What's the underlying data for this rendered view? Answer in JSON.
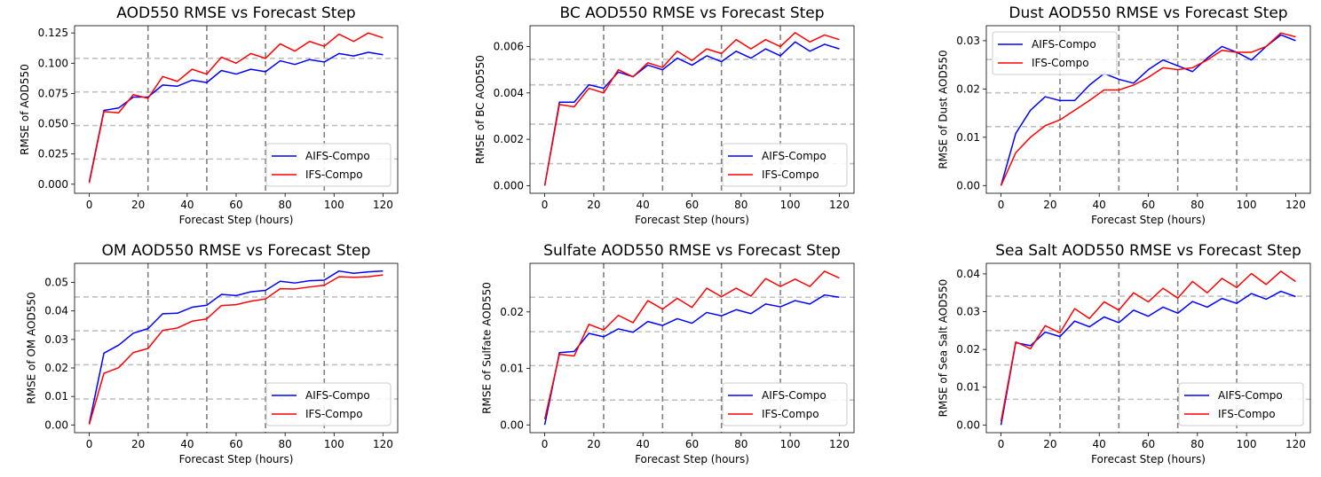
{
  "chart_data": [
    {
      "type": "line",
      "title": "AOD550 RMSE vs Forecast Step",
      "xlabel": "Forecast Step (hours)",
      "ylabel": "RMSE of AOD550",
      "xlim": [
        -6,
        126
      ],
      "ylim": [
        -0.0075,
        0.131
      ],
      "xticks": [
        "0",
        "20",
        "40",
        "60",
        "80",
        "100",
        "120"
      ],
      "yticks": [
        "0.000",
        "0.025",
        "0.050",
        "0.075",
        "0.100",
        "0.125"
      ],
      "legend": "lower-right",
      "grid": "dashed horizontal",
      "vlines": [
        24,
        48,
        72,
        96
      ],
      "hlines": [
        0.0208,
        0.0485,
        0.0763,
        0.104
      ],
      "x": [
        0,
        6,
        12,
        18,
        24,
        30,
        36,
        42,
        48,
        54,
        60,
        66,
        72,
        78,
        84,
        90,
        96,
        102,
        108,
        114,
        120
      ],
      "series": [
        {
          "name": "AIFS-Compo",
          "color": "#0000ff",
          "values": [
            0.002,
            0.061,
            0.063,
            0.072,
            0.072,
            0.082,
            0.081,
            0.086,
            0.084,
            0.094,
            0.091,
            0.095,
            0.093,
            0.102,
            0.099,
            0.103,
            0.101,
            0.108,
            0.106,
            0.109,
            0.107
          ]
        },
        {
          "name": "IFS-Compo",
          "color": "#ff0000",
          "values": [
            0.001,
            0.06,
            0.059,
            0.074,
            0.071,
            0.089,
            0.085,
            0.095,
            0.091,
            0.105,
            0.1,
            0.108,
            0.104,
            0.116,
            0.11,
            0.118,
            0.114,
            0.124,
            0.118,
            0.125,
            0.121
          ]
        }
      ]
    },
    {
      "type": "line",
      "title": "BC AOD550 RMSE vs Forecast Step",
      "xlabel": "Forecast Step (hours)",
      "ylabel": "RMSE of BC AOD550",
      "xlim": [
        -6,
        126
      ],
      "ylim": [
        -0.00033,
        0.0069
      ],
      "xticks": [
        "0",
        "20",
        "40",
        "60",
        "80",
        "100",
        "120"
      ],
      "yticks": [
        "0.000",
        "0.002",
        "0.004",
        "0.006"
      ],
      "legend": "lower-right",
      "grid": "dashed horizontal",
      "vlines": [
        24,
        48,
        72,
        96
      ],
      "hlines": [
        0.00095,
        0.00265,
        0.00435,
        0.00545
      ],
      "x": [
        0,
        6,
        12,
        18,
        24,
        30,
        36,
        42,
        48,
        54,
        60,
        66,
        72,
        78,
        84,
        90,
        96,
        102,
        108,
        114,
        120
      ],
      "series": [
        {
          "name": "AIFS-Compo",
          "color": "#0000ff",
          "values": [
            0.0,
            0.0036,
            0.0036,
            0.00435,
            0.0042,
            0.0049,
            0.0047,
            0.0052,
            0.005,
            0.0055,
            0.0052,
            0.0056,
            0.00535,
            0.0058,
            0.0055,
            0.0059,
            0.0056,
            0.0062,
            0.0058,
            0.0061,
            0.0059
          ]
        },
        {
          "name": "IFS-Compo",
          "color": "#ff0000",
          "values": [
            0.0,
            0.0035,
            0.0034,
            0.0042,
            0.004,
            0.005,
            0.0047,
            0.0053,
            0.0051,
            0.0058,
            0.0054,
            0.0059,
            0.0057,
            0.0063,
            0.0059,
            0.0063,
            0.006,
            0.0066,
            0.0062,
            0.0065,
            0.0063
          ]
        }
      ]
    },
    {
      "type": "line",
      "title": "Dust AOD550 RMSE vs Forecast Step",
      "xlabel": "Forecast Step (hours)",
      "ylabel": "RMSE of Dust AOD550",
      "xlim": [
        -6,
        126
      ],
      "ylim": [
        -0.0016,
        0.0331
      ],
      "xticks": [
        "0",
        "20",
        "40",
        "60",
        "80",
        "100",
        "120"
      ],
      "yticks": [
        "0.00",
        "0.01",
        "0.02",
        "0.03"
      ],
      "legend": "upper-left",
      "grid": "dashed horizontal",
      "vlines": [
        24,
        48,
        72,
        96
      ],
      "hlines": [
        0.0053,
        0.0122,
        0.0192,
        0.0261
      ],
      "x": [
        0,
        6,
        12,
        18,
        24,
        30,
        36,
        42,
        48,
        54,
        60,
        66,
        72,
        78,
        84,
        90,
        96,
        102,
        108,
        114,
        120
      ],
      "series": [
        {
          "name": "AIFS-Compo",
          "color": "#0000ff",
          "values": [
            0.0,
            0.0108,
            0.0156,
            0.0184,
            0.0176,
            0.0176,
            0.0208,
            0.0232,
            0.022,
            0.0212,
            0.024,
            0.026,
            0.0248,
            0.0236,
            0.0264,
            0.0288,
            0.0276,
            0.026,
            0.0288,
            0.0312,
            0.03
          ]
        },
        {
          "name": "IFS-Compo",
          "color": "#ff0000",
          "values": [
            0.0,
            0.0068,
            0.01,
            0.0124,
            0.0136,
            0.0156,
            0.0176,
            0.0198,
            0.0198,
            0.0208,
            0.0224,
            0.0244,
            0.024,
            0.0244,
            0.026,
            0.028,
            0.0276,
            0.0276,
            0.0288,
            0.0316,
            0.0308
          ]
        }
      ]
    },
    {
      "type": "line",
      "title": "OM AOD550 RMSE vs Forecast Step",
      "xlabel": "Forecast Step (hours)",
      "ylabel": "RMSE of OM AOD550",
      "xlim": [
        -6,
        126
      ],
      "ylim": [
        -0.0027,
        0.0567
      ],
      "xticks": [
        "0",
        "20",
        "40",
        "60",
        "80",
        "100",
        "120"
      ],
      "yticks": [
        "0.00",
        "0.01",
        "0.02",
        "0.03",
        "0.04",
        "0.05"
      ],
      "legend": "lower-right",
      "grid": "dashed horizontal",
      "vlines": [
        24,
        48,
        72,
        96
      ],
      "hlines": [
        0.0091,
        0.0211,
        0.033,
        0.0449
      ],
      "x": [
        0,
        6,
        12,
        18,
        24,
        30,
        36,
        42,
        48,
        54,
        60,
        66,
        72,
        78,
        84,
        90,
        96,
        102,
        108,
        114,
        120
      ],
      "series": [
        {
          "name": "AIFS-Compo",
          "color": "#0000ff",
          "values": [
            0.0005,
            0.0252,
            0.028,
            0.0322,
            0.0338,
            0.039,
            0.0392,
            0.0413,
            0.042,
            0.0458,
            0.0454,
            0.0467,
            0.0472,
            0.0504,
            0.0498,
            0.0506,
            0.0508,
            0.054,
            0.0532,
            0.0537,
            0.054
          ]
        },
        {
          "name": "IFS-Compo",
          "color": "#ff0000",
          "values": [
            0.0002,
            0.0181,
            0.0201,
            0.0254,
            0.0268,
            0.0332,
            0.034,
            0.0364,
            0.0372,
            0.0419,
            0.0422,
            0.0434,
            0.0442,
            0.0478,
            0.0477,
            0.0484,
            0.049,
            0.052,
            0.0518,
            0.052,
            0.0526
          ]
        }
      ]
    },
    {
      "type": "line",
      "title": "Sulfate AOD550 RMSE vs Forecast Step",
      "xlabel": "Forecast Step (hours)",
      "ylabel": "RMSE of Sulfate AOD550",
      "xlim": [
        -6,
        126
      ],
      "ylim": [
        -0.00137,
        0.0286
      ],
      "xticks": [
        "0",
        "20",
        "40",
        "60",
        "80",
        "100",
        "120"
      ],
      "yticks": [
        "0.00",
        "0.01",
        "0.02"
      ],
      "legend": "lower-right",
      "grid": "dashed horizontal",
      "vlines": [
        24,
        48,
        72,
        96
      ],
      "hlines": [
        0.0044,
        0.0105,
        0.0165,
        0.0226
      ],
      "x": [
        0,
        6,
        12,
        18,
        24,
        30,
        36,
        42,
        48,
        54,
        60,
        66,
        72,
        78,
        84,
        90,
        96,
        102,
        108,
        114,
        120
      ],
      "series": [
        {
          "name": "AIFS-Compo",
          "color": "#0000ff",
          "values": [
            0.0,
            0.0128,
            0.013,
            0.0162,
            0.0156,
            0.017,
            0.0164,
            0.0183,
            0.0176,
            0.0188,
            0.018,
            0.0199,
            0.0193,
            0.0204,
            0.0197,
            0.0214,
            0.0209,
            0.022,
            0.0214,
            0.023,
            0.0226
          ]
        },
        {
          "name": "IFS-Compo",
          "color": "#ff0000",
          "values": [
            0.001,
            0.0125,
            0.0122,
            0.0178,
            0.0168,
            0.0194,
            0.0181,
            0.022,
            0.0205,
            0.0224,
            0.0208,
            0.0242,
            0.0227,
            0.0242,
            0.0228,
            0.0259,
            0.0245,
            0.0258,
            0.0245,
            0.0272,
            0.026
          ]
        }
      ]
    },
    {
      "type": "line",
      "title": "Sea Salt AOD550 RMSE vs Forecast Step",
      "xlabel": "Forecast Step (hours)",
      "ylabel": "RMSE of Sea Salt AOD550",
      "xlim": [
        -6,
        126
      ],
      "ylim": [
        -0.00203,
        0.0428
      ],
      "xticks": [
        "0",
        "20",
        "40",
        "60",
        "80",
        "100",
        "120"
      ],
      "yticks": [
        "0.00",
        "0.01",
        "0.02",
        "0.03",
        "0.04"
      ],
      "legend": "lower-right",
      "grid": "dashed horizontal",
      "vlines": [
        24,
        48,
        72,
        96
      ],
      "hlines": [
        0.0068,
        0.0159,
        0.025,
        0.0341
      ],
      "x": [
        0,
        6,
        12,
        18,
        24,
        30,
        36,
        42,
        48,
        54,
        60,
        66,
        72,
        78,
        84,
        90,
        96,
        102,
        108,
        114,
        120
      ],
      "series": [
        {
          "name": "AIFS-Compo",
          "color": "#0000ff",
          "values": [
            0.0,
            0.0218,
            0.021,
            0.0246,
            0.0234,
            0.0275,
            0.026,
            0.0286,
            0.0271,
            0.0304,
            0.0288,
            0.0312,
            0.0296,
            0.0327,
            0.0312,
            0.0335,
            0.0322,
            0.0348,
            0.0333,
            0.0354,
            0.034
          ]
        },
        {
          "name": "IFS-Compo",
          "color": "#ff0000",
          "values": [
            0.001,
            0.022,
            0.0202,
            0.0263,
            0.0244,
            0.0308,
            0.0282,
            0.0326,
            0.0304,
            0.035,
            0.0326,
            0.0362,
            0.0336,
            0.038,
            0.035,
            0.0388,
            0.0364,
            0.0401,
            0.0372,
            0.0407,
            0.038
          ]
        }
      ]
    }
  ]
}
